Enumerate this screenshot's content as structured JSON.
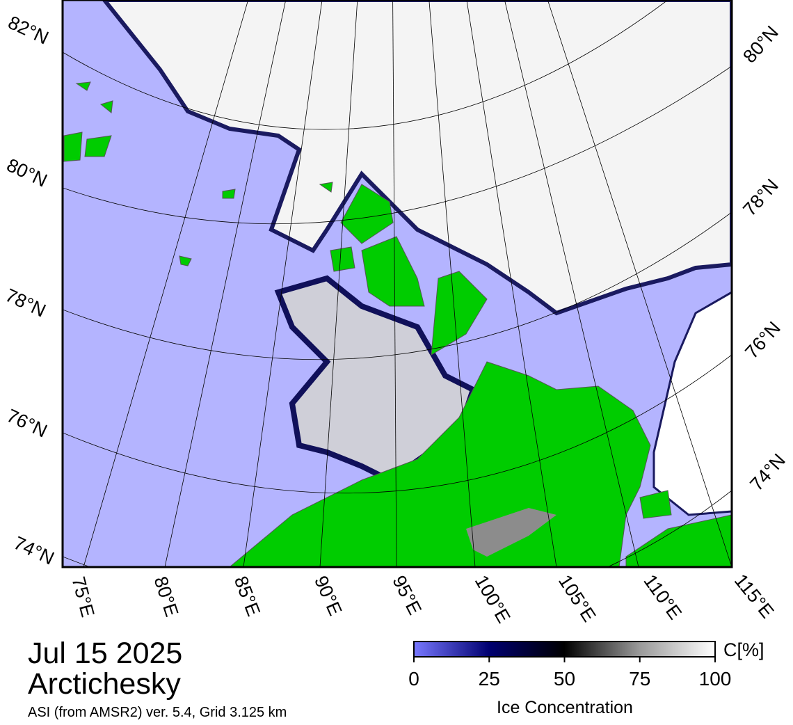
{
  "header": {
    "date": "Jul 15 2025",
    "region": "Arctichesky",
    "source": "ASI (from AMSR2) ver. 5.4,  Grid 3.125 km"
  },
  "map": {
    "lat_labels_left": [
      "82°N",
      "80°N",
      "78°N",
      "76°N",
      "74°N"
    ],
    "lat_labels_right": [
      "80°N",
      "78°N",
      "76°N",
      "74°N"
    ],
    "lon_labels": [
      "75°E",
      "80°E",
      "85°E",
      "90°E",
      "95°E",
      "100°E",
      "105°E",
      "110°E",
      "115°E"
    ]
  },
  "colorbar": {
    "unit": "C[%]",
    "label": "Ice Concentration",
    "lim": [
      0,
      100
    ],
    "ticks": [
      0,
      25,
      50,
      75,
      100
    ]
  }
}
